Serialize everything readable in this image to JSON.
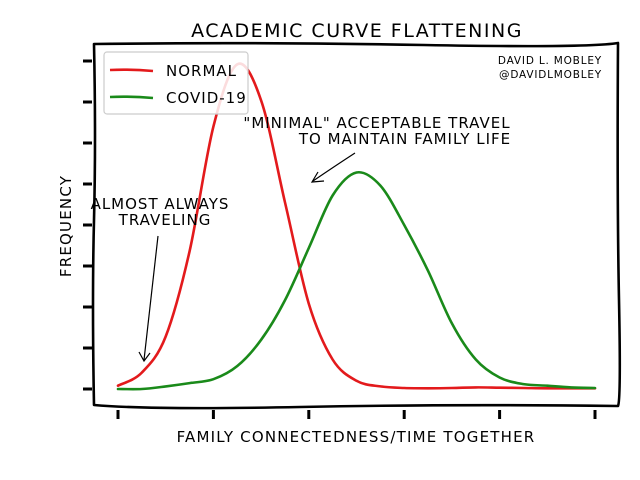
{
  "chart_data": {
    "type": "line",
    "style": "xkcd",
    "title": "ACADEMIC CURVE FLATTENING",
    "xlabel": "FAMILY CONNECTEDNESS/TIME TOGETHER",
    "ylabel": "FREQUENCY",
    "credit": [
      "DAVID L. MOBLEY",
      "@DAVIDLMOBLEY"
    ],
    "xlim": [
      0,
      10
    ],
    "ylim": [
      -0.05,
      1.05
    ],
    "x_ticks": [
      0,
      2,
      4,
      6,
      8,
      10
    ],
    "y_ticks": [
      0,
      0.125,
      0.25,
      0.375,
      0.5,
      0.625,
      0.75,
      0.875,
      1.0
    ],
    "tick_labels_shown": false,
    "grid": false,
    "legend_position": "top-left",
    "x": [
      0,
      0.5,
      1,
      1.5,
      2,
      2.5,
      3,
      3.5,
      4,
      4.5,
      5,
      5.5,
      6,
      6.5,
      7,
      7.5,
      8,
      8.5,
      9,
      9.5,
      10
    ],
    "series": [
      {
        "name": "NORMAL",
        "color": "#e31a1c",
        "values": [
          0.01,
          0.05,
          0.16,
          0.42,
          0.8,
          0.99,
          0.88,
          0.57,
          0.26,
          0.09,
          0.025,
          0.008,
          0.003,
          0.002,
          0.003,
          0.005,
          0.004,
          0.003,
          0.002,
          0.002,
          0.002
        ]
      },
      {
        "name": "COVID-19",
        "color": "#1a8a1a",
        "values": [
          0.0,
          0.0,
          0.008,
          0.018,
          0.03,
          0.07,
          0.15,
          0.27,
          0.43,
          0.59,
          0.66,
          0.62,
          0.5,
          0.36,
          0.2,
          0.09,
          0.035,
          0.015,
          0.01,
          0.005,
          0.003
        ]
      }
    ],
    "annotations": [
      {
        "text": [
          "ALMOST ALWAYS",
          "TRAVELING"
        ],
        "points_to": [
          0.5,
          0.08
        ]
      },
      {
        "text": [
          "\"MINIMAL\" ACCEPTABLE TRAVEL",
          "TO MAINTAIN FAMILY LIFE"
        ],
        "points_to": [
          4.1,
          0.63
        ]
      }
    ]
  }
}
